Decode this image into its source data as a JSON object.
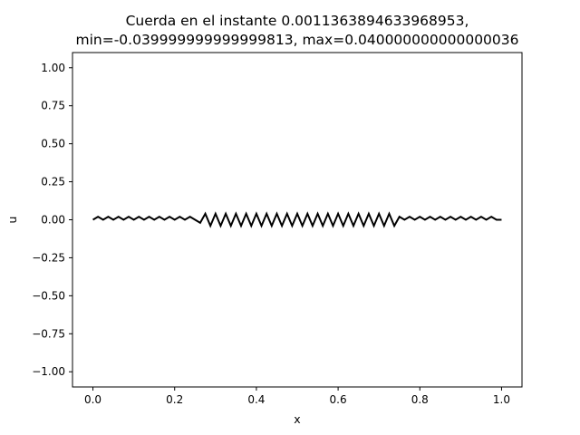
{
  "chart_data": {
    "type": "line",
    "title_line1": "Cuerda en el instante 0.0011363894633968953,",
    "title_line2": "min=-0.039999999999999813, max=0.040000000000000036",
    "xlabel": "x",
    "ylabel": "u",
    "xlim": [
      -0.05,
      1.05
    ],
    "ylim": [
      -1.1,
      1.1
    ],
    "xticks": [
      0.0,
      0.2,
      0.4,
      0.6,
      0.8,
      1.0
    ],
    "xtick_labels": [
      "0.0",
      "0.2",
      "0.4",
      "0.6",
      "0.8",
      "1.0"
    ],
    "yticks": [
      1.0,
      0.75,
      0.5,
      0.25,
      0.0,
      -0.25,
      -0.5,
      -0.75,
      -1.0
    ],
    "ytick_labels": [
      "1.00",
      "0.75",
      "0.50",
      "0.25",
      "0.00",
      "−0.25",
      "−0.50",
      "−0.75",
      "−1.00"
    ],
    "grid": false,
    "line_color": "#000000",
    "series": [
      {
        "x": [
          0.0,
          0.0125,
          0.025,
          0.0375,
          0.05,
          0.0625,
          0.075,
          0.0875,
          0.1,
          0.1125,
          0.125,
          0.1375,
          0.15,
          0.1625,
          0.175,
          0.1875,
          0.2,
          0.2125,
          0.225,
          0.2375,
          0.25,
          0.2625,
          0.275,
          0.2875,
          0.3,
          0.3125,
          0.325,
          0.3375,
          0.35,
          0.3625,
          0.375,
          0.3875,
          0.4,
          0.4125,
          0.425,
          0.4375,
          0.45,
          0.4625,
          0.475,
          0.4875,
          0.5,
          0.5125,
          0.525,
          0.5375,
          0.55,
          0.5625,
          0.575,
          0.5875,
          0.6,
          0.6125,
          0.625,
          0.6375,
          0.65,
          0.6625,
          0.675,
          0.6875,
          0.7,
          0.7125,
          0.725,
          0.7375,
          0.75,
          0.7625,
          0.775,
          0.7875,
          0.8,
          0.8125,
          0.825,
          0.8375,
          0.85,
          0.8625,
          0.875,
          0.8875,
          0.9,
          0.9125,
          0.925,
          0.9375,
          0.95,
          0.9625,
          0.975,
          0.9875,
          1.0
        ],
        "y": [
          0.0,
          0.02,
          0.0,
          0.02,
          0.0,
          0.02,
          0.0,
          0.02,
          0.0,
          0.02,
          0.0,
          0.02,
          0.0,
          0.02,
          0.0,
          0.02,
          0.0,
          0.02,
          0.0,
          0.02,
          0.0,
          -0.02,
          0.04,
          -0.04,
          0.04,
          -0.04,
          0.04,
          -0.04,
          0.04,
          -0.04,
          0.04,
          -0.04,
          0.04,
          -0.04,
          0.04,
          -0.04,
          0.04,
          -0.04,
          0.04,
          -0.04,
          0.04,
          -0.04,
          0.04,
          -0.04,
          0.04,
          -0.04,
          0.04,
          -0.04,
          0.04,
          -0.04,
          0.04,
          -0.04,
          0.04,
          -0.04,
          0.04,
          -0.04,
          0.04,
          -0.04,
          0.04,
          -0.04,
          0.02,
          0.0,
          0.02,
          0.0,
          0.02,
          0.0,
          0.02,
          0.0,
          0.02,
          0.0,
          0.02,
          0.0,
          0.02,
          0.0,
          0.02,
          0.0,
          0.02,
          0.0,
          0.02,
          0.0,
          0.0
        ]
      }
    ]
  }
}
